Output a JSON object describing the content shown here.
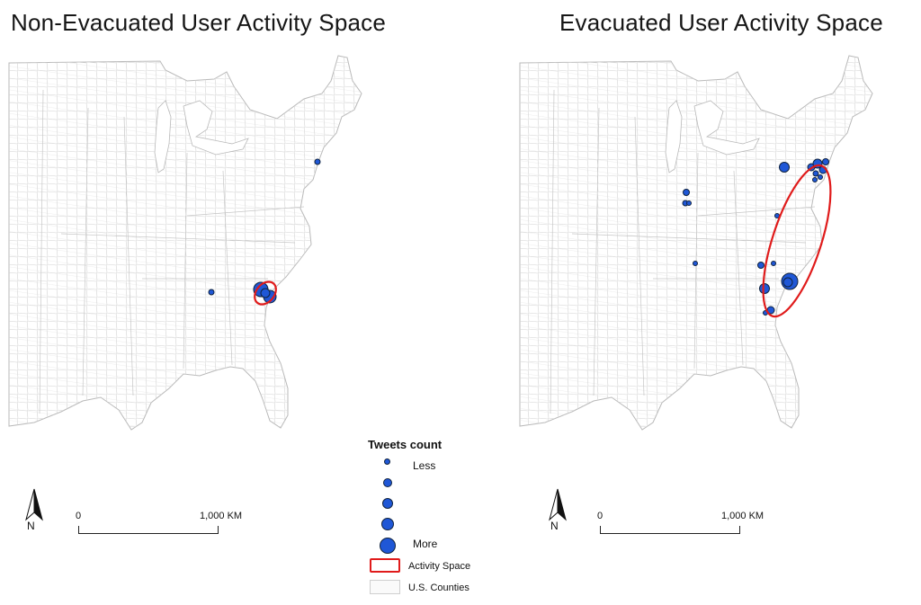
{
  "panels": {
    "left_title": "Non-Evacuated User Activity Space",
    "right_title": "Evacuated User Activity Space"
  },
  "colors": {
    "point_fill": "#1f57d6",
    "point_stroke": "#10233f",
    "activity_space": "#e01b1b",
    "county_lines": "#cfcfcf"
  },
  "north_arrow": {
    "label": "N"
  },
  "scale_bar": {
    "start": "0",
    "end": "1,000 KM"
  },
  "legend": {
    "title": "Tweets count",
    "less_label": "Less",
    "more_label": "More",
    "activity_space_label": "Activity Space",
    "counties_label": "U.S. Counties",
    "size_classes": 5
  },
  "map_layers": [
    "U.S. Counties",
    "Tweet points",
    "Activity Space"
  ]
}
